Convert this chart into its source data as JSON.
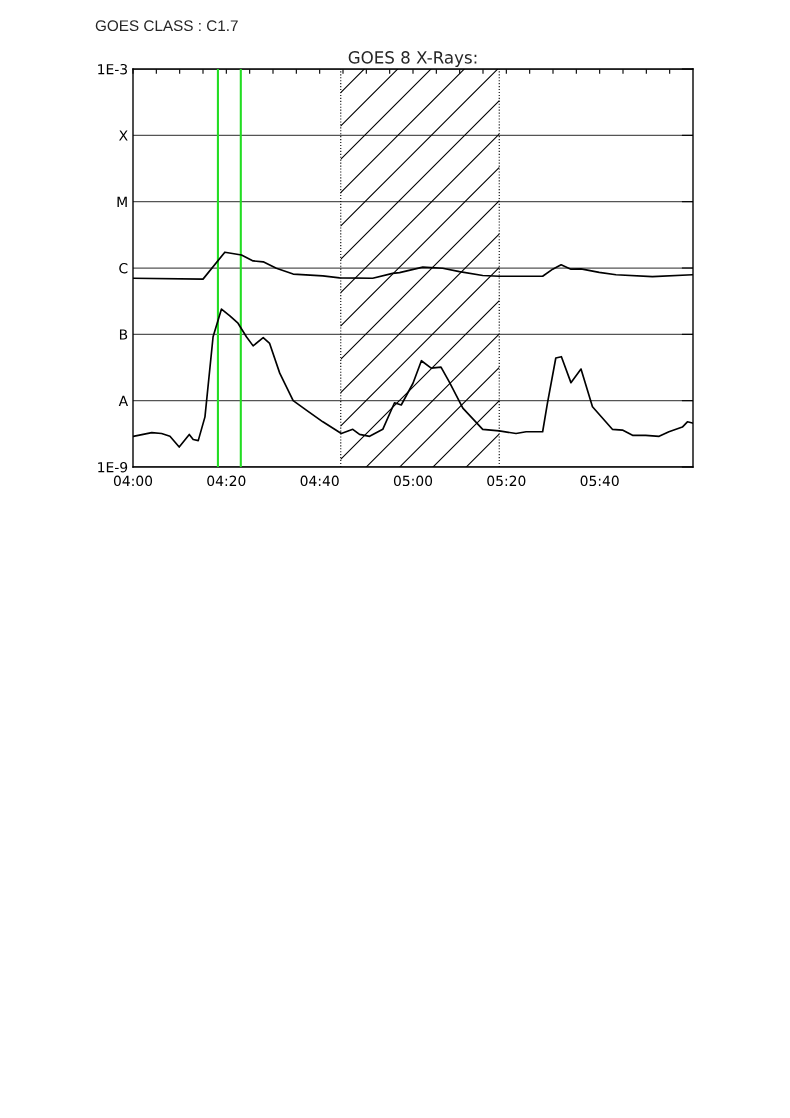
{
  "chart_data": {
    "type": "line",
    "title": "GOES 8 X-Rays:",
    "annotations": [
      "GOES CLASS : C1.7"
    ],
    "log": "y",
    "grid": "y",
    "marker": "none",
    "line_style": "solid",
    "xlim": [
      4.0,
      6.0
    ],
    "xticks": [
      {
        "value": 4.0,
        "label": "04:00"
      },
      {
        "value": 4.0833,
        "label": null
      },
      {
        "value": 4.1667,
        "label": null
      },
      {
        "value": 4.25,
        "label": null
      },
      {
        "value": 4.3333,
        "label": "04:20"
      },
      {
        "value": 4.4167,
        "label": null
      },
      {
        "value": 4.5,
        "label": null
      },
      {
        "value": 4.5833,
        "label": null
      },
      {
        "value": 4.6667,
        "label": "04:40"
      },
      {
        "value": 4.75,
        "label": null
      },
      {
        "value": 4.8333,
        "label": null
      },
      {
        "value": 4.9167,
        "label": null
      },
      {
        "value": 5.0,
        "label": "05:00"
      },
      {
        "value": 5.0833,
        "label": null
      },
      {
        "value": 5.1667,
        "label": null
      },
      {
        "value": 5.25,
        "label": null
      },
      {
        "value": 5.3333,
        "label": "05:20"
      },
      {
        "value": 5.4167,
        "label": null
      },
      {
        "value": 5.5,
        "label": null
      },
      {
        "value": 5.5833,
        "label": null
      },
      {
        "value": 5.6667,
        "label": "05:40"
      },
      {
        "value": 5.75,
        "label": null
      },
      {
        "value": 5.8333,
        "label": null
      },
      {
        "value": 5.9167,
        "label": null
      }
    ],
    "ylim": [
      1e-09,
      0.001
    ],
    "yticks": [
      {
        "value": 1e-09,
        "label": "1E-9"
      },
      {
        "value": 1e-08,
        "label": "A"
      },
      {
        "value": 1e-07,
        "label": "B"
      },
      {
        "value": 1e-06,
        "label": "C"
      },
      {
        "value": 1e-05,
        "label": "M"
      },
      {
        "value": 0.0001,
        "label": "X"
      },
      {
        "value": 0.001,
        "label": "1E-3"
      }
    ],
    "ref_lines": [
      {
        "axis": "x",
        "value": 4.3033,
        "color": "#22dd22",
        "line_style": "solid"
      },
      {
        "axis": "x",
        "value": 4.385,
        "color": "#22dd22",
        "line_style": "solid"
      },
      {
        "axis": "x",
        "value": 4.742,
        "color": "#000000",
        "line_style": "dotted"
      },
      {
        "axis": "x",
        "value": 5.308,
        "color": "#000000",
        "line_style": "dotted"
      }
    ],
    "bands": [
      {
        "axis": "x",
        "from": 4.742,
        "to": 5.308,
        "color": "#000000"
      }
    ],
    "series": [
      {
        "color": "#000000",
        "x": [
          4.0,
          4.25,
          4.328,
          4.3875,
          4.429,
          4.465,
          4.512,
          4.572,
          4.678,
          4.738,
          4.856,
          4.927,
          4.952,
          5.035,
          5.106,
          5.166,
          5.249,
          5.308,
          5.463,
          5.499,
          5.529,
          5.564,
          5.6,
          5.665,
          5.725,
          5.855,
          5.998
        ],
        "values": [
          7e-07,
          6.8e-07,
          1.73e-06,
          1.57e-06,
          1.28e-06,
          1.24e-06,
          9.9e-07,
          8.1e-07,
          7.6e-07,
          7.1e-07,
          7e-07,
          8.3e-07,
          8.5e-07,
          1.03e-06,
          9.9e-07,
          8.8e-07,
          7.7e-07,
          7.5e-07,
          7.5e-07,
          9.6e-07,
          1.12e-06,
          9.6e-07,
          9.7e-07,
          8.6e-07,
          7.9e-07,
          7.4e-07,
          7.9e-07
        ]
      },
      {
        "color": "#000000",
        "x": [
          4.001,
          4.067,
          4.102,
          4.132,
          4.165,
          4.201,
          4.215,
          4.233,
          4.257,
          4.286,
          4.316,
          4.346,
          4.375,
          4.405,
          4.429,
          4.465,
          4.488,
          4.524,
          4.572,
          4.619,
          4.678,
          4.744,
          4.785,
          4.809,
          4.845,
          4.892,
          4.934,
          4.958,
          5.0,
          5.03,
          5.065,
          5.1,
          5.13,
          5.178,
          5.249,
          5.308,
          5.368,
          5.404,
          5.463,
          5.48,
          5.51,
          5.53,
          5.564,
          5.6,
          5.641,
          5.712,
          5.748,
          5.784,
          5.831,
          5.879,
          5.914,
          5.962,
          5.98,
          5.998
        ],
        "values": [
          2.9e-09,
          3.3e-09,
          3.2e-09,
          2.9e-09,
          2e-09,
          3.1e-09,
          2.6e-09,
          2.5e-09,
          5.7e-09,
          9.2e-08,
          2.4e-07,
          1.9e-07,
          1.47e-07,
          9.2e-08,
          6.7e-08,
          8.9e-08,
          7.3e-08,
          2.6e-08,
          1e-08,
          7.2e-09,
          4.8e-09,
          3.2e-09,
          3.7e-09,
          3.1e-09,
          2.9e-09,
          3.7e-09,
          9.3e-09,
          8.6e-09,
          1.83e-08,
          4e-08,
          3.1e-08,
          3.2e-08,
          1.9e-08,
          7.7e-09,
          3.7e-09,
          3.5e-09,
          3.2e-09,
          3.4e-09,
          3.4e-09,
          9.1e-09,
          4.4e-08,
          4.6e-08,
          1.87e-08,
          3e-08,
          8.1e-09,
          3.7e-09,
          3.6e-09,
          3e-09,
          3e-09,
          2.9e-09,
          3.4e-09,
          4e-09,
          4.8e-09,
          4.6e-09
        ]
      }
    ]
  }
}
